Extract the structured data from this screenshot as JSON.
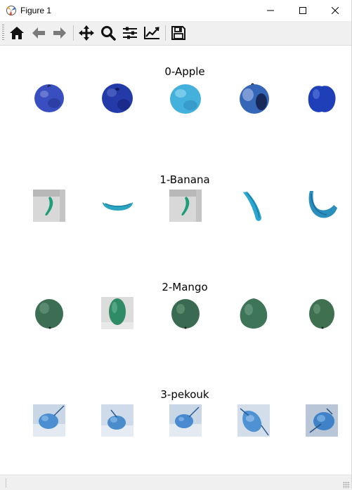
{
  "window": {
    "title": "Figure 1",
    "controls": [
      "minimize",
      "maximize",
      "close"
    ]
  },
  "toolbar": {
    "buttons": [
      {
        "icon": "home-icon",
        "label": "Home"
      },
      {
        "icon": "back-arrow-icon",
        "label": "Back"
      },
      {
        "icon": "forward-arrow-icon",
        "label": "Forward"
      },
      {
        "icon": "pan-icon",
        "label": "Pan"
      },
      {
        "icon": "zoom-icon",
        "label": "Zoom"
      },
      {
        "icon": "subplots-icon",
        "label": "Subplots"
      },
      {
        "icon": "edit-axes-icon",
        "label": "Customize"
      },
      {
        "icon": "save-icon",
        "label": "Save"
      }
    ]
  },
  "figure": {
    "rows": [
      {
        "title": "0-Apple",
        "class": "apple"
      },
      {
        "title": "1-Banana",
        "class": "banana"
      },
      {
        "title": "2-Mango",
        "class": "mango"
      },
      {
        "title": "3-pekouk",
        "class": "pekouk"
      }
    ],
    "images_per_row": 5
  },
  "colors": {
    "apple": "#2f45b8",
    "banana": "#2aa0c8",
    "mango": "#3f7a5a",
    "pekouk": "#4d8fcf",
    "toolbar_bg": "#f0f0f0"
  }
}
